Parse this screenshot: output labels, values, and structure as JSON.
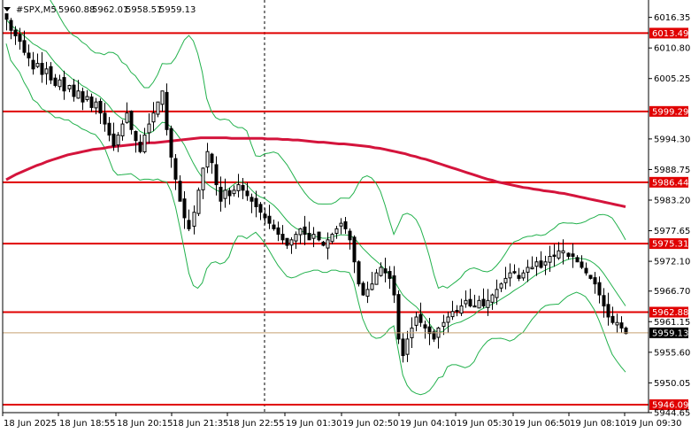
{
  "symbol_label": "#SPX,M5",
  "ohlc": {
    "open": "5960.88",
    "high": "5962.01",
    "low": "5958.51",
    "close": "5959.13"
  },
  "colors": {
    "background": "#ffffff",
    "level_line": "#e00000",
    "ma_line": "#d4143c",
    "bollinger": "#22b14c",
    "price_line": "#c8a070",
    "candle": "#000000",
    "current_price_bg": "#000000"
  },
  "chart_data": {
    "type": "candlestick",
    "title": "",
    "ylim": [
      5944.65,
      6019.5
    ],
    "y_ticks": [
      "6016.35",
      "6010.80",
      "6005.25",
      "5994.30",
      "5988.75",
      "5983.20",
      "5977.65",
      "5972.10",
      "5966.70",
      "5961.15",
      "5955.60",
      "5950.05",
      "5944.65"
    ],
    "x_ticks": [
      "18 Jun 2025",
      "18 Jun 18:55",
      "18 Jun 20:15",
      "18 Jun 21:35",
      "18 Jun 22:55",
      "19 Jun 01:30",
      "19 Jun 02:50",
      "19 Jun 04:10",
      "19 Jun 05:30",
      "19 Jun 06:50",
      "19 Jun 08:10",
      "19 Jun 09:30"
    ],
    "levels": [
      {
        "value": 6013.49,
        "label": "6013.49"
      },
      {
        "value": 5999.29,
        "label": "5999.29"
      },
      {
        "value": 5986.44,
        "label": "5986.44"
      },
      {
        "value": 5975.31,
        "label": "5975.31"
      },
      {
        "value": 5962.88,
        "label": "5962.88"
      },
      {
        "value": 5946.09,
        "label": "5946.09"
      }
    ],
    "current_price": {
      "value": 5959.13,
      "label": "5959.13"
    },
    "close_series": [
      6016,
      6014,
      6013,
      6012,
      6010,
      6009,
      6007,
      6008,
      6006,
      6007,
      6005,
      6004,
      6005,
      6003,
      6004,
      6002,
      6003,
      6001,
      6002,
      6000,
      6001,
      5999,
      5997,
      5995,
      5993,
      5995,
      5997,
      5999,
      5996,
      5994,
      5992,
      5995,
      5997,
      5999,
      6001,
      6003,
      5996,
      5991,
      5987,
      5983,
      5980,
      5978,
      5981,
      5985,
      5989,
      5992,
      5990,
      5986,
      5983,
      5985,
      5984,
      5985,
      5986,
      5985,
      5984,
      5983,
      5982,
      5981,
      5980,
      5979,
      5978,
      5977,
      5976,
      5975,
      5976,
      5977,
      5978,
      5977,
      5976,
      5977,
      5976,
      5975,
      5976,
      5977,
      5978,
      5979,
      5978,
      5976,
      5972,
      5968,
      5966,
      5967,
      5968,
      5970,
      5971,
      5970,
      5969,
      5966,
      5958,
      5955,
      5958,
      5960,
      5962,
      5961,
      5960,
      5959,
      5958,
      5960,
      5961,
      5962,
      5963,
      5963,
      5964,
      5965,
      5964,
      5964,
      5965,
      5964,
      5965,
      5966,
      5967,
      5968,
      5969,
      5970,
      5970,
      5969,
      5970,
      5971,
      5971,
      5972,
      5971,
      5972,
      5973,
      5973,
      5974,
      5974,
      5973,
      5973,
      5972,
      5971,
      5970,
      5969,
      5968,
      5966,
      5964,
      5962,
      5961,
      5961,
      5960,
      5959
    ],
    "ma_series": [
      5986.9,
      5987.4,
      5987.9,
      5988.3,
      5988.7,
      5989.1,
      5989.5,
      5989.8,
      5990.2,
      5990.5,
      5990.8,
      5991.1,
      5991.4,
      5991.6,
      5991.8,
      5992.0,
      5992.2,
      5992.4,
      5992.5,
      5992.6,
      5992.8,
      5992.9,
      5993.0,
      5993.1,
      5993.2,
      5993.3,
      5993.4,
      5993.5,
      5993.6,
      5993.6,
      5993.7,
      5993.8,
      5993.9,
      5994.0,
      5994.1,
      5994.2,
      5994.3,
      5994.4,
      5994.5,
      5994.5,
      5994.5,
      5994.5,
      5994.5,
      5994.5,
      5994.4,
      5994.4,
      5994.4,
      5994.4,
      5994.4,
      5994.4,
      5994.4,
      5994.3,
      5994.3,
      5994.3,
      5994.2,
      5994.2,
      5994.1,
      5994.1,
      5994.0,
      5993.9,
      5993.8,
      5993.7,
      5993.7,
      5993.6,
      5993.5,
      5993.4,
      5993.4,
      5993.3,
      5993.2,
      5993.1,
      5993.0,
      5992.9,
      5992.7,
      5992.6,
      5992.4,
      5992.2,
      5992.0,
      5991.8,
      5991.6,
      5991.3,
      5991.1,
      5990.8,
      5990.6,
      5990.3,
      5990.0,
      5989.7,
      5989.4,
      5989.1,
      5988.8,
      5988.5,
      5988.2,
      5987.9,
      5987.6,
      5987.3,
      5987.0,
      5986.8,
      5986.5,
      5986.3,
      5986.1,
      5985.9,
      5985.7,
      5985.5,
      5985.4,
      5985.2,
      5985.1,
      5984.9,
      5984.8,
      5984.7,
      5984.5,
      5984.4,
      5984.2,
      5984.0,
      5983.8,
      5983.6,
      5983.4,
      5983.2,
      5983.0,
      5982.8,
      5982.6,
      5982.4,
      5982.2,
      5982.0
    ]
  }
}
